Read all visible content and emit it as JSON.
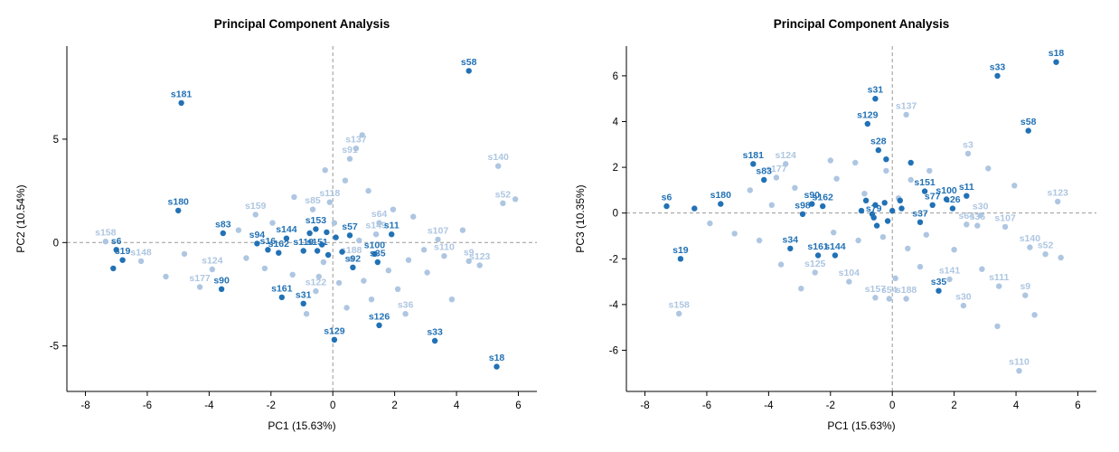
{
  "figure": {
    "background": "#ffffff"
  },
  "chart_data": [
    {
      "type": "scatter",
      "title": "Principal Component Analysis",
      "xlabel": "PC1 (15.63%)",
      "ylabel": "PC2 (10.54%)",
      "xlim": [
        -8.6,
        6.6
      ],
      "ylim": [
        -7.2,
        9.5
      ],
      "xticks": [
        -8,
        -6,
        -4,
        -2,
        0,
        2,
        4,
        6
      ],
      "yticks": [
        -5,
        0,
        5
      ],
      "grid": "dashed zero lines only",
      "legend": "none",
      "colors": {
        "dark": "#2171b5",
        "light": "#aec6e1"
      },
      "points": [
        {
          "l": "s58",
          "x": 4.4,
          "y": 8.3,
          "g": "dark"
        },
        {
          "l": "s181",
          "x": -4.9,
          "y": 6.75,
          "g": "dark"
        },
        {
          "l": "s137",
          "x": 0.75,
          "y": 4.55,
          "g": "light"
        },
        {
          "l": "s91",
          "x": 0.55,
          "y": 4.05,
          "g": "light"
        },
        {
          "l": "s140",
          "x": 5.35,
          "y": 3.7,
          "g": "light"
        },
        {
          "l": "s52",
          "x": 5.5,
          "y": 1.9,
          "g": "light"
        },
        {
          "l": "s180",
          "x": -5.0,
          "y": 1.55,
          "g": "dark"
        },
        {
          "l": "s118",
          "x": -0.1,
          "y": 1.95,
          "g": "light"
        },
        {
          "l": "s85",
          "x": -0.65,
          "y": 1.6,
          "g": "light"
        },
        {
          "l": "s159",
          "x": -2.5,
          "y": 1.35,
          "g": "light"
        },
        {
          "l": "s64",
          "x": 1.5,
          "y": 0.95,
          "g": "light"
        },
        {
          "l": "s153",
          "x": -0.55,
          "y": 0.65,
          "g": "dark"
        },
        {
          "l": "s83",
          "x": -3.55,
          "y": 0.45,
          "g": "dark"
        },
        {
          "l": "s144",
          "x": -1.5,
          "y": 0.2,
          "g": "dark"
        },
        {
          "l": "s94",
          "x": -2.45,
          "y": -0.05,
          "g": "dark"
        },
        {
          "l": "s16",
          "x": -2.1,
          "y": -0.35,
          "g": "dark"
        },
        {
          "l": "s162",
          "x": -1.75,
          "y": -0.5,
          "g": "dark"
        },
        {
          "l": "s119",
          "x": -0.95,
          "y": -0.4,
          "g": "dark"
        },
        {
          "l": "s151",
          "x": -0.5,
          "y": -0.4,
          "g": "dark"
        },
        {
          "l": "s57",
          "x": 0.55,
          "y": 0.35,
          "g": "dark"
        },
        {
          "l": "s149",
          "x": 1.4,
          "y": 0.4,
          "g": "light"
        },
        {
          "l": "s11",
          "x": 1.9,
          "y": 0.4,
          "g": "dark"
        },
        {
          "l": "s107",
          "x": 3.4,
          "y": 0.15,
          "g": "light"
        },
        {
          "l": "s100",
          "x": 1.35,
          "y": -0.55,
          "g": "dark"
        },
        {
          "l": "s35",
          "x": 1.45,
          "y": -0.95,
          "g": "dark"
        },
        {
          "l": "s188",
          "x": 0.6,
          "y": -0.8,
          "g": "light"
        },
        {
          "l": "s92",
          "x": 0.65,
          "y": -1.2,
          "g": "dark"
        },
        {
          "l": "s110",
          "x": 3.6,
          "y": -0.65,
          "g": "light"
        },
        {
          "l": "s9",
          "x": 4.4,
          "y": -0.9,
          "g": "light"
        },
        {
          "l": "s123",
          "x": 4.75,
          "y": -1.1,
          "g": "light"
        },
        {
          "l": "s158",
          "x": -7.35,
          "y": 0.05,
          "g": "light"
        },
        {
          "l": "s6",
          "x": -7.0,
          "y": -0.35,
          "g": "dark"
        },
        {
          "l": "s19",
          "x": -6.8,
          "y": -0.85,
          "g": "dark"
        },
        {
          "l": "s148",
          "x": -6.2,
          "y": -0.9,
          "g": "light"
        },
        {
          "l": "s124",
          "x": -3.9,
          "y": -1.3,
          "g": "light"
        },
        {
          "l": "s177",
          "x": -4.3,
          "y": -2.15,
          "g": "light"
        },
        {
          "l": "s90",
          "x": -3.6,
          "y": -2.25,
          "g": "dark"
        },
        {
          "l": "s122",
          "x": -0.55,
          "y": -2.35,
          "g": "light"
        },
        {
          "l": "s161",
          "x": -1.65,
          "y": -2.65,
          "g": "dark"
        },
        {
          "l": "s31",
          "x": -0.95,
          "y": -2.95,
          "g": "dark"
        },
        {
          "l": "s36",
          "x": 2.35,
          "y": -3.45,
          "g": "light"
        },
        {
          "l": "s126",
          "x": 1.5,
          "y": -4.0,
          "g": "dark"
        },
        {
          "l": "s129",
          "x": 0.05,
          "y": -4.7,
          "g": "dark"
        },
        {
          "l": "s33",
          "x": 3.3,
          "y": -4.75,
          "g": "dark"
        },
        {
          "l": "s18",
          "x": 5.3,
          "y": -6.0,
          "g": "dark"
        },
        {
          "l": "",
          "x": 0.95,
          "y": 5.2,
          "g": "light"
        },
        {
          "l": "",
          "x": -0.25,
          "y": 3.5,
          "g": "light"
        },
        {
          "l": "",
          "x": 0.4,
          "y": 3.0,
          "g": "light"
        },
        {
          "l": "",
          "x": 1.15,
          "y": 2.5,
          "g": "light"
        },
        {
          "l": "",
          "x": 1.95,
          "y": 1.6,
          "g": "light"
        },
        {
          "l": "",
          "x": 2.6,
          "y": 1.25,
          "g": "light"
        },
        {
          "l": "",
          "x": -1.25,
          "y": 2.2,
          "g": "light"
        },
        {
          "l": "",
          "x": -1.95,
          "y": 0.95,
          "g": "light"
        },
        {
          "l": "",
          "x": -3.05,
          "y": 0.6,
          "g": "light"
        },
        {
          "l": "",
          "x": -2.8,
          "y": -0.75,
          "g": "light"
        },
        {
          "l": "",
          "x": -2.2,
          "y": -1.25,
          "g": "light"
        },
        {
          "l": "",
          "x": -1.3,
          "y": -1.55,
          "g": "light"
        },
        {
          "l": "",
          "x": -0.45,
          "y": -1.65,
          "g": "light"
        },
        {
          "l": "",
          "x": 0.2,
          "y": -1.95,
          "g": "light"
        },
        {
          "l": "",
          "x": 1.0,
          "y": -1.85,
          "g": "light"
        },
        {
          "l": "",
          "x": 1.8,
          "y": -1.35,
          "g": "light"
        },
        {
          "l": "",
          "x": 2.45,
          "y": -0.85,
          "g": "light"
        },
        {
          "l": "",
          "x": 2.95,
          "y": -0.35,
          "g": "light"
        },
        {
          "l": "",
          "x": 3.05,
          "y": -1.45,
          "g": "light"
        },
        {
          "l": "",
          "x": 2.1,
          "y": -2.25,
          "g": "light"
        },
        {
          "l": "",
          "x": 1.25,
          "y": -2.75,
          "g": "light"
        },
        {
          "l": "",
          "x": 0.45,
          "y": -3.15,
          "g": "light"
        },
        {
          "l": "",
          "x": -0.85,
          "y": -3.45,
          "g": "light"
        },
        {
          "l": "",
          "x": 5.9,
          "y": 2.1,
          "g": "light"
        },
        {
          "l": "",
          "x": 4.2,
          "y": 0.6,
          "g": "light"
        },
        {
          "l": "",
          "x": -5.4,
          "y": -1.65,
          "g": "light"
        },
        {
          "l": "",
          "x": -4.8,
          "y": -0.55,
          "g": "light"
        },
        {
          "l": "",
          "x": 0.05,
          "y": 0.95,
          "g": "light"
        },
        {
          "l": "",
          "x": 0.85,
          "y": 0.1,
          "g": "light"
        },
        {
          "l": "",
          "x": -0.3,
          "y": -0.95,
          "g": "light"
        },
        {
          "l": "",
          "x": 3.85,
          "y": -2.75,
          "g": "light"
        },
        {
          "l": "",
          "x": -7.1,
          "y": -1.25,
          "g": "dark"
        },
        {
          "l": "",
          "x": -0.2,
          "y": 0.5,
          "g": "dark"
        },
        {
          "l": "",
          "x": 0.1,
          "y": 0.25,
          "g": "dark"
        },
        {
          "l": "",
          "x": -0.75,
          "y": 0.45,
          "g": "dark"
        },
        {
          "l": "",
          "x": -0.35,
          "y": -0.1,
          "g": "dark"
        },
        {
          "l": "",
          "x": -0.15,
          "y": -0.6,
          "g": "dark"
        },
        {
          "l": "",
          "x": 0.3,
          "y": -0.45,
          "g": "dark"
        }
      ]
    },
    {
      "type": "scatter",
      "title": "Principal Component Analysis",
      "xlabel": "PC1 (15.63%)",
      "ylabel": "PC3 (10.35%)",
      "xlim": [
        -8.6,
        6.6
      ],
      "ylim": [
        -7.8,
        7.3
      ],
      "xticks": [
        -8,
        -6,
        -4,
        -2,
        0,
        2,
        4,
        6
      ],
      "yticks": [
        -6,
        -4,
        -2,
        0,
        2,
        4,
        6
      ],
      "grid": "dashed zero lines only",
      "legend": "none",
      "colors": {
        "dark": "#2171b5",
        "light": "#aec6e1"
      },
      "points": [
        {
          "l": "s18",
          "x": 5.3,
          "y": 6.6,
          "g": "dark"
        },
        {
          "l": "s33",
          "x": 3.4,
          "y": 6.0,
          "g": "dark"
        },
        {
          "l": "s31",
          "x": -0.55,
          "y": 5.0,
          "g": "dark"
        },
        {
          "l": "s137",
          "x": 0.45,
          "y": 4.3,
          "g": "light"
        },
        {
          "l": "s129",
          "x": -0.8,
          "y": 3.9,
          "g": "dark"
        },
        {
          "l": "s58",
          "x": 4.4,
          "y": 3.6,
          "g": "dark"
        },
        {
          "l": "s3",
          "x": 2.45,
          "y": 2.6,
          "g": "light"
        },
        {
          "l": "s28",
          "x": -0.45,
          "y": 2.75,
          "g": "dark"
        },
        {
          "l": "s181",
          "x": -4.5,
          "y": 2.15,
          "g": "dark"
        },
        {
          "l": "s124",
          "x": -3.45,
          "y": 2.15,
          "g": "light"
        },
        {
          "l": "s177",
          "x": -3.75,
          "y": 1.55,
          "g": "light"
        },
        {
          "l": "s83",
          "x": -4.15,
          "y": 1.45,
          "g": "dark"
        },
        {
          "l": "s151",
          "x": 1.05,
          "y": 0.95,
          "g": "dark"
        },
        {
          "l": "s100",
          "x": 1.75,
          "y": 0.6,
          "g": "dark"
        },
        {
          "l": "s11",
          "x": 2.4,
          "y": 0.75,
          "g": "dark"
        },
        {
          "l": "s77",
          "x": 1.3,
          "y": 0.35,
          "g": "dark"
        },
        {
          "l": "s26",
          "x": 1.95,
          "y": 0.2,
          "g": "dark"
        },
        {
          "l": "s123",
          "x": 5.35,
          "y": 0.5,
          "g": "light"
        },
        {
          "l": "s180",
          "x": -5.55,
          "y": 0.4,
          "g": "dark"
        },
        {
          "l": "s6",
          "x": -7.3,
          "y": 0.3,
          "g": "dark"
        },
        {
          "l": "s90",
          "x": -2.6,
          "y": 0.4,
          "g": "dark"
        },
        {
          "l": "s98",
          "x": -2.9,
          "y": -0.05,
          "g": "dark"
        },
        {
          "l": "s162",
          "x": -2.25,
          "y": 0.3,
          "g": "dark"
        },
        {
          "l": "s79",
          "x": -0.6,
          "y": -0.2,
          "g": "dark"
        },
        {
          "l": "s37",
          "x": 0.9,
          "y": -0.4,
          "g": "dark"
        },
        {
          "l": "s30",
          "x": 2.85,
          "y": -0.1,
          "g": "light"
        },
        {
          "l": "s64",
          "x": 2.4,
          "y": -0.5,
          "g": "light"
        },
        {
          "l": "s36",
          "x": 2.75,
          "y": -0.55,
          "g": "light"
        },
        {
          "l": "s107",
          "x": 3.65,
          "y": -0.6,
          "g": "light"
        },
        {
          "l": "s19",
          "x": -6.85,
          "y": -2.0,
          "g": "dark"
        },
        {
          "l": "s34",
          "x": -3.3,
          "y": -1.55,
          "g": "dark"
        },
        {
          "l": "s161",
          "x": -2.4,
          "y": -1.85,
          "g": "dark"
        },
        {
          "l": "s144",
          "x": -1.85,
          "y": -1.85,
          "g": "dark"
        },
        {
          "l": "s125",
          "x": -2.5,
          "y": -2.6,
          "g": "light"
        },
        {
          "l": "s104",
          "x": -1.4,
          "y": -3.0,
          "g": "light"
        },
        {
          "l": "s140",
          "x": 4.45,
          "y": -1.5,
          "g": "light"
        },
        {
          "l": "s52",
          "x": 4.95,
          "y": -1.8,
          "g": "light"
        },
        {
          "l": "s141",
          "x": 1.85,
          "y": -2.9,
          "g": "light"
        },
        {
          "l": "s111",
          "x": 3.45,
          "y": -3.2,
          "g": "light"
        },
        {
          "l": "s35",
          "x": 1.5,
          "y": -3.4,
          "g": "dark"
        },
        {
          "l": "s9",
          "x": 4.3,
          "y": -3.6,
          "g": "light"
        },
        {
          "l": "s157",
          "x": -0.55,
          "y": -3.7,
          "g": "light"
        },
        {
          "l": "s54",
          "x": -0.1,
          "y": -3.75,
          "g": "light"
        },
        {
          "l": "s188",
          "x": 0.45,
          "y": -3.75,
          "g": "light"
        },
        {
          "l": "s30",
          "x": 2.3,
          "y": -4.05,
          "g": "light"
        },
        {
          "l": "s158",
          "x": -6.9,
          "y": -4.4,
          "g": "light"
        },
        {
          "l": "s110",
          "x": 4.1,
          "y": -6.9,
          "g": "light"
        },
        {
          "l": "",
          "x": -4.6,
          "y": 1.0,
          "g": "light"
        },
        {
          "l": "",
          "x": -3.9,
          "y": 0.35,
          "g": "light"
        },
        {
          "l": "",
          "x": -3.15,
          "y": 1.1,
          "g": "light"
        },
        {
          "l": "",
          "x": -1.8,
          "y": 1.5,
          "g": "light"
        },
        {
          "l": "",
          "x": -1.2,
          "y": 2.2,
          "g": "light"
        },
        {
          "l": "",
          "x": -0.2,
          "y": 1.85,
          "g": "light"
        },
        {
          "l": "",
          "x": 0.6,
          "y": 1.45,
          "g": "light"
        },
        {
          "l": "",
          "x": 1.2,
          "y": 1.85,
          "g": "light"
        },
        {
          "l": "",
          "x": 3.1,
          "y": 1.95,
          "g": "light"
        },
        {
          "l": "",
          "x": 3.95,
          "y": 1.2,
          "g": "light"
        },
        {
          "l": "",
          "x": -5.9,
          "y": -0.45,
          "g": "light"
        },
        {
          "l": "",
          "x": -5.1,
          "y": -0.9,
          "g": "light"
        },
        {
          "l": "",
          "x": -4.3,
          "y": -1.2,
          "g": "light"
        },
        {
          "l": "",
          "x": -3.6,
          "y": -2.25,
          "g": "light"
        },
        {
          "l": "",
          "x": -2.95,
          "y": -3.3,
          "g": "light"
        },
        {
          "l": "",
          "x": -1.9,
          "y": -0.85,
          "g": "light"
        },
        {
          "l": "",
          "x": -1.1,
          "y": -1.2,
          "g": "light"
        },
        {
          "l": "",
          "x": -0.3,
          "y": -1.05,
          "g": "light"
        },
        {
          "l": "",
          "x": 0.5,
          "y": -1.55,
          "g": "light"
        },
        {
          "l": "",
          "x": 1.1,
          "y": -0.95,
          "g": "light"
        },
        {
          "l": "",
          "x": 2.0,
          "y": -1.6,
          "g": "light"
        },
        {
          "l": "",
          "x": 2.9,
          "y": -2.45,
          "g": "light"
        },
        {
          "l": "",
          "x": 0.9,
          "y": -2.35,
          "g": "light"
        },
        {
          "l": "",
          "x": 0.1,
          "y": -2.85,
          "g": "light"
        },
        {
          "l": "",
          "x": 4.6,
          "y": -4.45,
          "g": "light"
        },
        {
          "l": "",
          "x": 3.4,
          "y": -4.95,
          "g": "light"
        },
        {
          "l": "",
          "x": -0.9,
          "y": 0.85,
          "g": "light"
        },
        {
          "l": "",
          "x": 0.2,
          "y": 0.65,
          "g": "light"
        },
        {
          "l": "",
          "x": 5.45,
          "y": -1.95,
          "g": "light"
        },
        {
          "l": "",
          "x": -2.0,
          "y": 2.3,
          "g": "light"
        },
        {
          "l": "",
          "x": -6.4,
          "y": 0.2,
          "g": "dark"
        },
        {
          "l": "",
          "x": -0.2,
          "y": 2.35,
          "g": "dark"
        },
        {
          "l": "",
          "x": -1.0,
          "y": 0.1,
          "g": "dark"
        },
        {
          "l": "",
          "x": -0.5,
          "y": -0.55,
          "g": "dark"
        },
        {
          "l": "",
          "x": 0.3,
          "y": 0.2,
          "g": "dark"
        },
        {
          "l": "",
          "x": -0.85,
          "y": 0.55,
          "g": "dark"
        },
        {
          "l": "",
          "x": -0.55,
          "y": 0.35,
          "g": "dark"
        },
        {
          "l": "",
          "x": -0.25,
          "y": 0.45,
          "g": "dark"
        },
        {
          "l": "",
          "x": 0.0,
          "y": 0.1,
          "g": "dark"
        },
        {
          "l": "",
          "x": -0.65,
          "y": -0.05,
          "g": "dark"
        },
        {
          "l": "",
          "x": -0.15,
          "y": -0.35,
          "g": "dark"
        },
        {
          "l": "",
          "x": 0.25,
          "y": 0.55,
          "g": "dark"
        },
        {
          "l": "",
          "x": 0.6,
          "y": 2.2,
          "g": "dark"
        }
      ]
    }
  ]
}
